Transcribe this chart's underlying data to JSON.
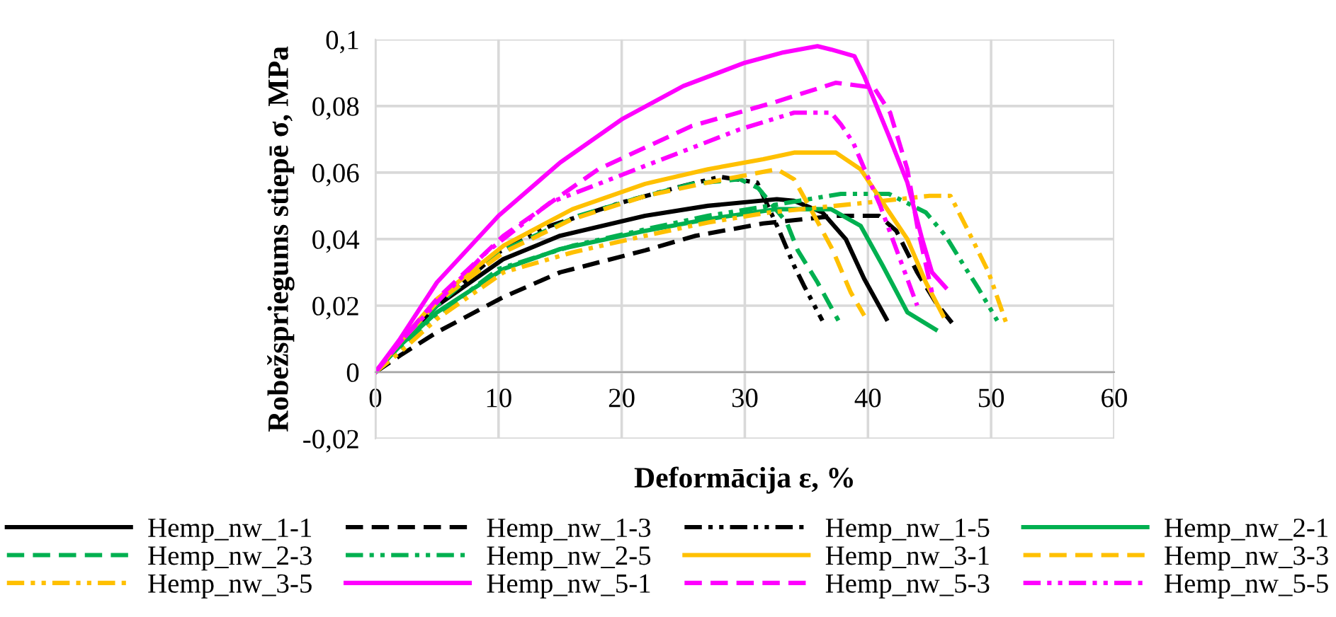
{
  "chart_data": {
    "type": "line",
    "xlabel": "Deformācija ε, %",
    "ylabel": "Robežspriegums stiepē σ, MPa",
    "xlim": [
      0,
      60
    ],
    "xticks": [
      0,
      10,
      20,
      30,
      40,
      50,
      60
    ],
    "ylim": [
      -0.02,
      0.1
    ],
    "yticks": [
      {
        "value": -0.02,
        "label": "-0,02"
      },
      {
        "value": 0,
        "label": "0"
      },
      {
        "value": 0.02,
        "label": "0,02"
      },
      {
        "value": 0.04,
        "label": "0,04"
      },
      {
        "value": 0.06,
        "label": "0,06"
      },
      {
        "value": 0.08,
        "label": "0,08"
      },
      {
        "value": 0.1,
        "label": "0,1"
      }
    ],
    "grid": true,
    "legend": "bottom",
    "marker": "none",
    "series": [
      {
        "name": "Hemp_nw_1-1",
        "color": "#000000",
        "line_style": "solid",
        "x": [
          0,
          2,
          5,
          10.4,
          15,
          21.9,
          27,
          32.6,
          34,
          36.3,
          38.2,
          39.7,
          41.5
        ],
        "values": [
          0,
          0.009,
          0.02,
          0.034,
          0.041,
          0.047,
          0.05,
          0.052,
          0.0515,
          0.048,
          0.04,
          0.028,
          0.016
        ]
      },
      {
        "name": "Hemp_nw_1-3",
        "color": "#000000",
        "line_style": "dashed",
        "x": [
          0,
          2,
          5,
          10.4,
          15,
          21.9,
          26,
          31.5,
          37.4,
          40.9,
          42.3,
          44,
          45.5,
          47
        ],
        "values": [
          0,
          0.005,
          0.012,
          0.0226,
          0.03,
          0.0366,
          0.041,
          0.0447,
          0.047,
          0.047,
          0.0425,
          0.03,
          0.021,
          0.014
        ]
      },
      {
        "name": "Hemp_nw_1-5",
        "color": "#000000",
        "line_style": "dashdot",
        "x": [
          0,
          2,
          5,
          10,
          14.2,
          20,
          25,
          28,
          31,
          32.8,
          34,
          34.8,
          36.3
        ],
        "values": [
          0,
          0.008,
          0.02,
          0.036,
          0.044,
          0.051,
          0.056,
          0.0587,
          0.057,
          0.0425,
          0.032,
          0.026,
          0.0155
        ]
      },
      {
        "name": "Hemp_nw_2-1",
        "color": "#00b050",
        "line_style": "solid",
        "x": [
          0,
          2,
          5,
          10.4,
          15,
          21.9,
          27,
          32.6,
          35.5,
          37,
          39.4,
          41.2,
          43.2,
          45.5
        ],
        "values": [
          0,
          0.008,
          0.018,
          0.031,
          0.037,
          0.0425,
          0.046,
          0.049,
          0.049,
          0.049,
          0.044,
          0.032,
          0.018,
          0.0128
        ]
      },
      {
        "name": "Hemp_nw_2-3",
        "color": "#00b050",
        "line_style": "dashed",
        "x": [
          0,
          2,
          5,
          10,
          16.5,
          21,
          25.7,
          29.6,
          31.1,
          33.4,
          34.3,
          35.9,
          37.6
        ],
        "values": [
          0,
          0.008,
          0.02,
          0.036,
          0.047,
          0.052,
          0.0566,
          0.058,
          0.0553,
          0.045,
          0.0366,
          0.027,
          0.0155
        ]
      },
      {
        "name": "Hemp_nw_2-5",
        "color": "#00b050",
        "line_style": "dashdot",
        "x": [
          0,
          2,
          5,
          10,
          16,
          22,
          27,
          32,
          37.8,
          41.7,
          44.7,
          46.3,
          47.8,
          49,
          50.5
        ],
        "values": [
          0,
          0.007,
          0.017,
          0.031,
          0.038,
          0.043,
          0.047,
          0.05,
          0.0536,
          0.0536,
          0.048,
          0.041,
          0.032,
          0.025,
          0.0155
        ]
      },
      {
        "name": "Hemp_nw_3-1",
        "color": "#ffc000",
        "line_style": "solid",
        "x": [
          0,
          2,
          5,
          10.4,
          16,
          21.9,
          27,
          31.5,
          34,
          37.4,
          39.4,
          41.2,
          43.2,
          44.7,
          46.1
        ],
        "values": [
          0,
          0.009,
          0.022,
          0.038,
          0.049,
          0.0566,
          0.061,
          0.064,
          0.066,
          0.066,
          0.061,
          0.051,
          0.04,
          0.027,
          0.017
        ]
      },
      {
        "name": "Hemp_nw_3-3",
        "color": "#ffc000",
        "line_style": "dashed",
        "x": [
          0,
          2,
          5,
          10.4,
          16,
          22,
          27,
          32.6,
          34,
          35.5,
          37.1,
          38.6,
          39.7
        ],
        "values": [
          0,
          0.009,
          0.021,
          0.036,
          0.046,
          0.053,
          0.057,
          0.061,
          0.058,
          0.048,
          0.037,
          0.024,
          0.017
        ]
      },
      {
        "name": "Hemp_nw_3-5",
        "color": "#ffc000",
        "line_style": "dashdot",
        "x": [
          0,
          2,
          5,
          10.4,
          16,
          21.9,
          27,
          32,
          40,
          45,
          46.7,
          48.2,
          49.8,
          51.3
        ],
        "values": [
          0,
          0.006,
          0.016,
          0.03,
          0.036,
          0.041,
          0.045,
          0.048,
          0.051,
          0.053,
          0.053,
          0.042,
          0.03,
          0.014
        ]
      },
      {
        "name": "Hemp_nw_5-1",
        "color": "#ff00ff",
        "line_style": "solid",
        "x": [
          0,
          2,
          5,
          10,
          15,
          20,
          25,
          30,
          33,
          35.9,
          37,
          38.9,
          39.7,
          41.7,
          43.2,
          44.4,
          45.2,
          46.3
        ],
        "values": [
          0,
          0.01,
          0.027,
          0.047,
          0.063,
          0.076,
          0.086,
          0.093,
          0.096,
          0.098,
          0.097,
          0.095,
          0.089,
          0.071,
          0.057,
          0.04,
          0.03,
          0.0255
        ]
      },
      {
        "name": "Hemp_nw_5-3",
        "color": "#ff00ff",
        "line_style": "dashed",
        "x": [
          0,
          2,
          5,
          10.4,
          18.1,
          25.7,
          32.3,
          37.4,
          40.5,
          41.8,
          43.2,
          44,
          45.2
        ],
        "values": [
          0,
          0.009,
          0.022,
          0.041,
          0.061,
          0.074,
          0.081,
          0.087,
          0.0855,
          0.078,
          0.061,
          0.044,
          0.024
        ]
      },
      {
        "name": "Hemp_nw_5-5",
        "color": "#ff00ff",
        "line_style": "dashdot",
        "x": [
          0,
          2,
          5,
          9,
          14.2,
          21.9,
          29.6,
          34,
          37,
          37.8,
          38.8,
          41,
          43,
          44
        ],
        "values": [
          0,
          0.009,
          0.021,
          0.036,
          0.051,
          0.062,
          0.073,
          0.078,
          0.078,
          0.0745,
          0.069,
          0.05,
          0.03,
          0.02
        ]
      }
    ]
  }
}
